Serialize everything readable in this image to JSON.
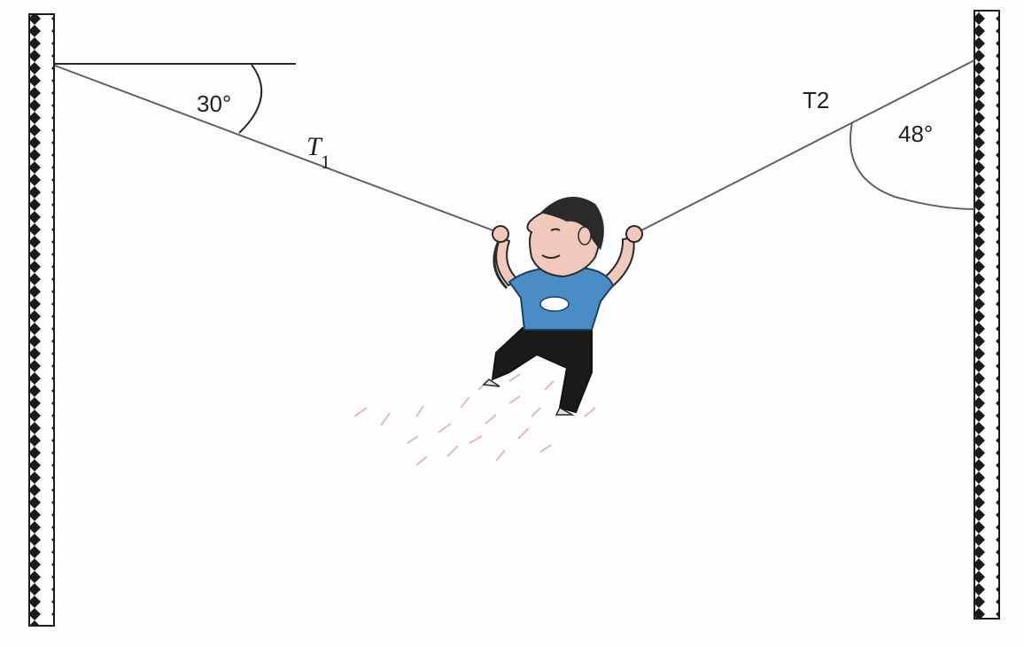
{
  "labels": {
    "angle_left": "30°",
    "angle_right": "48°",
    "tension_left": "T",
    "tension_left_subscript": "1",
    "tension_right": "T2"
  },
  "colors": {
    "rope": "#5a6272",
    "pole_dark": "#1c1c1c",
    "shirt": "#4a8cc4",
    "skin": "#f0c8bc",
    "pants": "#1a1a1a"
  },
  "icons": {
    "figure": "person-hanging-icon"
  }
}
